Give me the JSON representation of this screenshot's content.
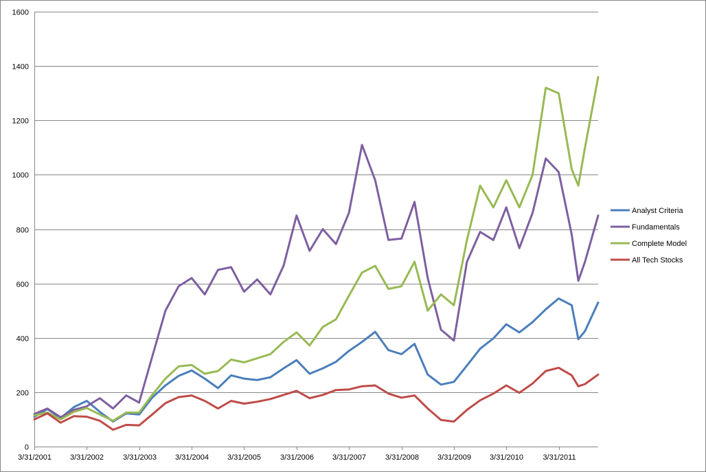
{
  "chart_data": {
    "type": "line",
    "title": "",
    "xlabel": "",
    "ylabel": "",
    "ylim": [
      0,
      1600
    ],
    "y_ticks": [
      0,
      200,
      400,
      600,
      800,
      1000,
      1200,
      1400,
      1600
    ],
    "x_range": [
      "2001-03-31",
      "2011-12-31"
    ],
    "x_tick_labels": [
      "3/31/2001",
      "3/31/2002",
      "3/31/2003",
      "3/31/2004",
      "3/31/2005",
      "3/31/2006",
      "3/31/2007",
      "3/31/2008",
      "3/31/2009",
      "3/31/2010",
      "3/31/2011"
    ],
    "grid": "horizontal",
    "legend_position": "right",
    "series": [
      {
        "name": "Analyst Criteria",
        "color": "#4a7ebb",
        "points": [
          [
            "2001-03-31",
            110
          ],
          [
            "2001-06-30",
            138
          ],
          [
            "2001-09-30",
            105
          ],
          [
            "2001-12-31",
            145
          ],
          [
            "2002-03-31",
            168
          ],
          [
            "2002-06-30",
            128
          ],
          [
            "2002-09-30",
            92
          ],
          [
            "2002-12-31",
            122
          ],
          [
            "2003-03-31",
            118
          ],
          [
            "2003-06-30",
            180
          ],
          [
            "2003-09-30",
            225
          ],
          [
            "2003-12-31",
            260
          ],
          [
            "2004-03-31",
            280
          ],
          [
            "2004-06-30",
            250
          ],
          [
            "2004-09-30",
            215
          ],
          [
            "2004-12-31",
            262
          ],
          [
            "2005-03-31",
            250
          ],
          [
            "2005-06-30",
            245
          ],
          [
            "2005-09-30",
            255
          ],
          [
            "2005-12-31",
            288
          ],
          [
            "2006-03-31",
            318
          ],
          [
            "2006-06-30",
            268
          ],
          [
            "2006-09-30",
            288
          ],
          [
            "2006-12-31",
            312
          ],
          [
            "2007-03-31",
            352
          ],
          [
            "2007-06-30",
            385
          ],
          [
            "2007-09-30",
            422
          ],
          [
            "2007-12-31",
            355
          ],
          [
            "2008-03-31",
            340
          ],
          [
            "2008-06-30",
            378
          ],
          [
            "2008-09-30",
            265
          ],
          [
            "2008-12-31",
            228
          ],
          [
            "2009-03-31",
            238
          ],
          [
            "2009-06-30",
            298
          ],
          [
            "2009-09-30",
            360
          ],
          [
            "2009-12-31",
            398
          ],
          [
            "2010-03-31",
            450
          ],
          [
            "2010-06-30",
            420
          ],
          [
            "2010-09-30",
            458
          ],
          [
            "2010-12-31",
            505
          ],
          [
            "2011-03-31",
            545
          ],
          [
            "2011-06-30",
            520
          ],
          [
            "2011-08-15",
            395
          ],
          [
            "2011-09-30",
            425
          ],
          [
            "2011-12-31",
            530
          ]
        ]
      },
      {
        "name": "Fundamentals",
        "color": "#7d5fa0",
        "points": [
          [
            "2001-03-31",
            120
          ],
          [
            "2001-06-30",
            140
          ],
          [
            "2001-09-30",
            108
          ],
          [
            "2001-12-31",
            135
          ],
          [
            "2002-03-31",
            148
          ],
          [
            "2002-06-30",
            178
          ],
          [
            "2002-09-30",
            140
          ],
          [
            "2002-12-31",
            188
          ],
          [
            "2003-03-31",
            162
          ],
          [
            "2003-06-30",
            330
          ],
          [
            "2003-09-30",
            500
          ],
          [
            "2003-12-31",
            590
          ],
          [
            "2004-03-31",
            620
          ],
          [
            "2004-06-30",
            560
          ],
          [
            "2004-09-30",
            650
          ],
          [
            "2004-12-31",
            660
          ],
          [
            "2005-03-31",
            570
          ],
          [
            "2005-06-30",
            615
          ],
          [
            "2005-09-30",
            560
          ],
          [
            "2005-12-31",
            665
          ],
          [
            "2006-03-31",
            850
          ],
          [
            "2006-06-30",
            720
          ],
          [
            "2006-09-30",
            800
          ],
          [
            "2006-12-31",
            745
          ],
          [
            "2007-03-31",
            860
          ],
          [
            "2007-06-30",
            1110
          ],
          [
            "2007-09-30",
            980
          ],
          [
            "2007-12-31",
            760
          ],
          [
            "2008-03-31",
            765
          ],
          [
            "2008-06-30",
            900
          ],
          [
            "2008-09-30",
            620
          ],
          [
            "2008-12-31",
            430
          ],
          [
            "2009-03-31",
            390
          ],
          [
            "2009-06-30",
            680
          ],
          [
            "2009-09-30",
            790
          ],
          [
            "2009-12-31",
            760
          ],
          [
            "2010-03-31",
            880
          ],
          [
            "2010-06-30",
            730
          ],
          [
            "2010-09-30",
            860
          ],
          [
            "2010-12-31",
            1060
          ],
          [
            "2011-03-31",
            1010
          ],
          [
            "2011-06-30",
            780
          ],
          [
            "2011-08-15",
            610
          ],
          [
            "2011-09-30",
            680
          ],
          [
            "2011-12-31",
            850
          ]
        ]
      },
      {
        "name": "Complete Model",
        "color": "#98b954",
        "points": [
          [
            "2001-03-31",
            115
          ],
          [
            "2001-06-30",
            125
          ],
          [
            "2001-09-30",
            100
          ],
          [
            "2001-12-31",
            128
          ],
          [
            "2002-03-31",
            142
          ],
          [
            "2002-06-30",
            118
          ],
          [
            "2002-09-30",
            95
          ],
          [
            "2002-12-31",
            125
          ],
          [
            "2003-03-31",
            125
          ],
          [
            "2003-06-30",
            190
          ],
          [
            "2003-09-30",
            250
          ],
          [
            "2003-12-31",
            295
          ],
          [
            "2004-03-31",
            300
          ],
          [
            "2004-06-30",
            268
          ],
          [
            "2004-09-30",
            278
          ],
          [
            "2004-12-31",
            320
          ],
          [
            "2005-03-31",
            310
          ],
          [
            "2005-06-30",
            325
          ],
          [
            "2005-09-30",
            340
          ],
          [
            "2005-12-31",
            385
          ],
          [
            "2006-03-31",
            420
          ],
          [
            "2006-06-30",
            372
          ],
          [
            "2006-09-30",
            440
          ],
          [
            "2006-12-31",
            468
          ],
          [
            "2007-03-31",
            555
          ],
          [
            "2007-06-30",
            640
          ],
          [
            "2007-09-30",
            665
          ],
          [
            "2007-12-31",
            580
          ],
          [
            "2008-03-31",
            590
          ],
          [
            "2008-06-30",
            680
          ],
          [
            "2008-09-30",
            500
          ],
          [
            "2008-12-31",
            560
          ],
          [
            "2009-03-31",
            520
          ],
          [
            "2009-06-30",
            760
          ],
          [
            "2009-09-30",
            960
          ],
          [
            "2009-12-31",
            880
          ],
          [
            "2010-03-31",
            980
          ],
          [
            "2010-06-30",
            880
          ],
          [
            "2010-09-30",
            1000
          ],
          [
            "2010-12-31",
            1320
          ],
          [
            "2011-03-31",
            1300
          ],
          [
            "2011-06-30",
            1020
          ],
          [
            "2011-08-15",
            960
          ],
          [
            "2011-09-30",
            1100
          ],
          [
            "2011-12-31",
            1360
          ]
        ]
      },
      {
        "name": "All Tech Stocks",
        "color": "#be4b48",
        "points": [
          [
            "2001-03-31",
            100
          ],
          [
            "2001-06-30",
            122
          ],
          [
            "2001-09-30",
            88
          ],
          [
            "2001-12-31",
            112
          ],
          [
            "2002-03-31",
            110
          ],
          [
            "2002-06-30",
            95
          ],
          [
            "2002-09-30",
            62
          ],
          [
            "2002-12-31",
            80
          ],
          [
            "2003-03-31",
            78
          ],
          [
            "2003-06-30",
            118
          ],
          [
            "2003-09-30",
            160
          ],
          [
            "2003-12-31",
            182
          ],
          [
            "2004-03-31",
            188
          ],
          [
            "2004-06-30",
            168
          ],
          [
            "2004-09-30",
            140
          ],
          [
            "2004-12-31",
            168
          ],
          [
            "2005-03-31",
            158
          ],
          [
            "2005-06-30",
            165
          ],
          [
            "2005-09-30",
            175
          ],
          [
            "2005-12-31",
            190
          ],
          [
            "2006-03-31",
            205
          ],
          [
            "2006-06-30",
            178
          ],
          [
            "2006-09-30",
            190
          ],
          [
            "2006-12-31",
            208
          ],
          [
            "2007-03-31",
            210
          ],
          [
            "2007-06-30",
            222
          ],
          [
            "2007-09-30",
            225
          ],
          [
            "2007-12-31",
            195
          ],
          [
            "2008-03-31",
            180
          ],
          [
            "2008-06-30",
            188
          ],
          [
            "2008-09-30",
            140
          ],
          [
            "2008-12-31",
            98
          ],
          [
            "2009-03-31",
            92
          ],
          [
            "2009-06-30",
            135
          ],
          [
            "2009-09-30",
            170
          ],
          [
            "2009-12-31",
            195
          ],
          [
            "2010-03-31",
            225
          ],
          [
            "2010-06-30",
            198
          ],
          [
            "2010-09-30",
            232
          ],
          [
            "2010-12-31",
            278
          ],
          [
            "2011-03-31",
            290
          ],
          [
            "2011-06-30",
            262
          ],
          [
            "2011-08-15",
            222
          ],
          [
            "2011-09-30",
            230
          ],
          [
            "2011-12-31",
            265
          ]
        ]
      }
    ]
  }
}
